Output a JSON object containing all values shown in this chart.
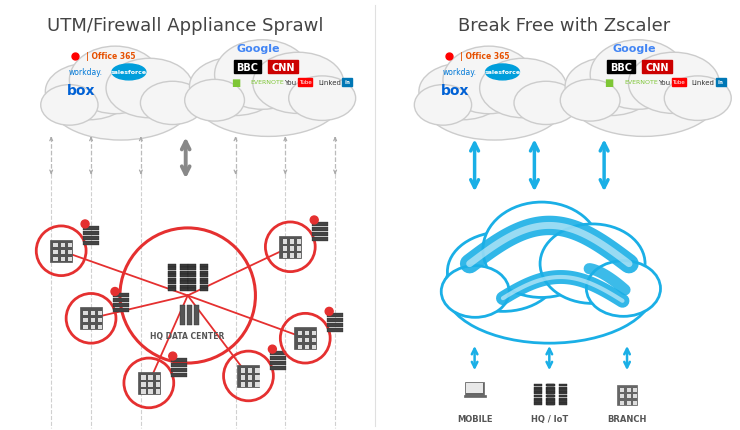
{
  "bg_color": "#ffffff",
  "left_title": "UTM/Firewall Appliance Sprawl",
  "right_title": "Break Free with Zscaler",
  "title_fontsize": 13,
  "title_color": "#444444",
  "hq_label": "HQ DATA CENTER",
  "bottom_labels": [
    "MOBILE",
    "HQ / IoT",
    "BRANCH"
  ],
  "arrow_color_gray": "#aaaaaa",
  "arrow_color_blue": "#1aafe6",
  "circle_color_red": "#e53030",
  "cloud_fill": "#f7f7f7",
  "cloud_stroke": "#cccccc",
  "zscaler_blue": "#1aafe6"
}
